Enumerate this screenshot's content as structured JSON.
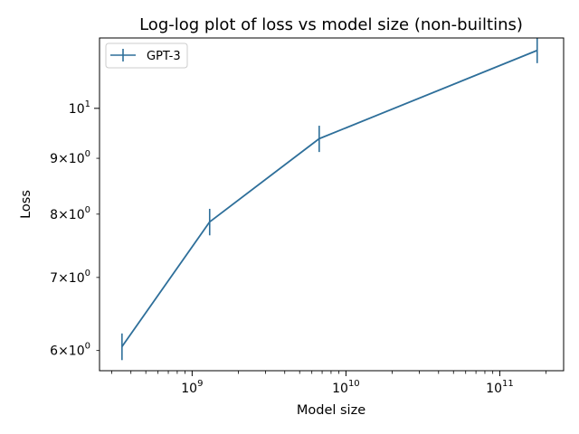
{
  "chart_data": {
    "type": "line",
    "title": "Log-log plot of loss vs model size (non-builtins)",
    "xlabel": "Model size",
    "ylabel": "Loss",
    "xscale": "log",
    "yscale": "log",
    "xlim": [
      250000000,
      260000000000
    ],
    "ylim": [
      5.75,
      11.6
    ],
    "grid": false,
    "legend_position": "top-left",
    "series": [
      {
        "name": "GPT-3",
        "color": "#2e6f9a",
        "x": [
          350000000,
          1300000000,
          6700000000,
          175000000000
        ],
        "y": [
          6.05,
          7.87,
          9.38,
          11.3
        ],
        "yerr": [
          0.17,
          0.22,
          0.26,
          0.3
        ]
      }
    ],
    "x_major_ticks": [
      {
        "value": 1000000000,
        "base": "10",
        "exp": "9"
      },
      {
        "value": 10000000000,
        "base": "10",
        "exp": "10"
      },
      {
        "value": 100000000000,
        "base": "10",
        "exp": "11"
      }
    ],
    "y_major_ticks": [
      {
        "value": 10,
        "base": "10",
        "exp": "1"
      }
    ],
    "y_minor_ticks": [
      {
        "value": 6,
        "mant": "6",
        "times": "×",
        "base": "10",
        "exp": "0"
      },
      {
        "value": 7,
        "mant": "7",
        "times": "×",
        "base": "10",
        "exp": "0"
      },
      {
        "value": 8,
        "mant": "8",
        "times": "×",
        "base": "10",
        "exp": "0"
      },
      {
        "value": 9,
        "mant": "9",
        "times": "×",
        "base": "10",
        "exp": "0"
      }
    ]
  }
}
